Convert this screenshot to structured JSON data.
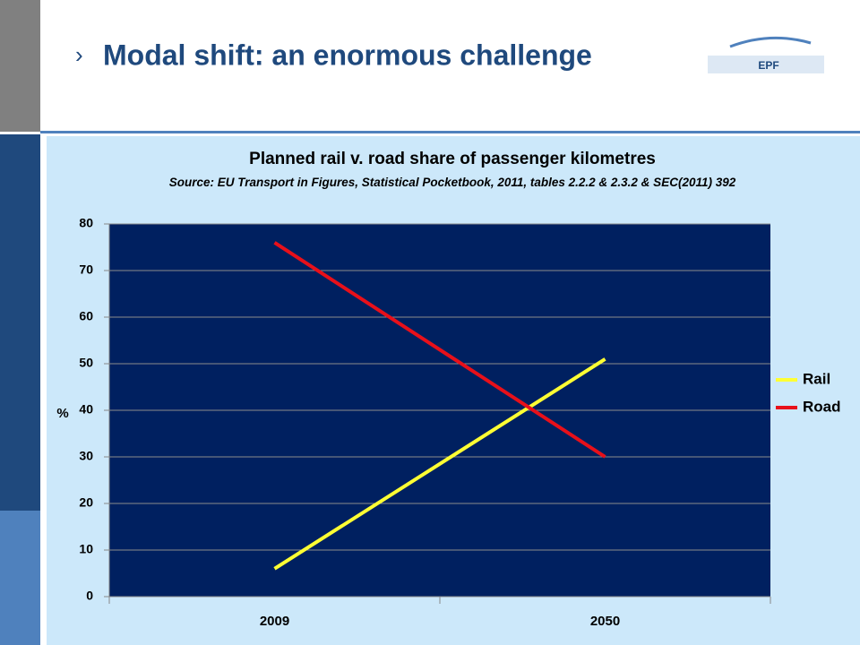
{
  "slide_title": "Modal shift: an enormous challenge",
  "logo_text": "EPF",
  "chart_data": {
    "type": "line",
    "title": "Planned rail v. road share of passenger kilometres",
    "subtitle": "Source: EU Transport in Figures, Statistical Pocketbook, 2011, tables 2.2.2 & 2.3.2 & SEC(2011) 392",
    "y_label": "%",
    "categories": [
      "2009",
      "2050"
    ],
    "series": [
      {
        "name": "Rail",
        "color": "#ffff33",
        "values": [
          6,
          51
        ]
      },
      {
        "name": "Road",
        "color": "#e8101a",
        "values": [
          76,
          30
        ]
      }
    ],
    "ylim": [
      0,
      80
    ],
    "yticks": [
      0,
      10,
      20,
      30,
      40,
      50,
      60,
      70,
      80
    ],
    "grid": true,
    "legend": "right"
  }
}
